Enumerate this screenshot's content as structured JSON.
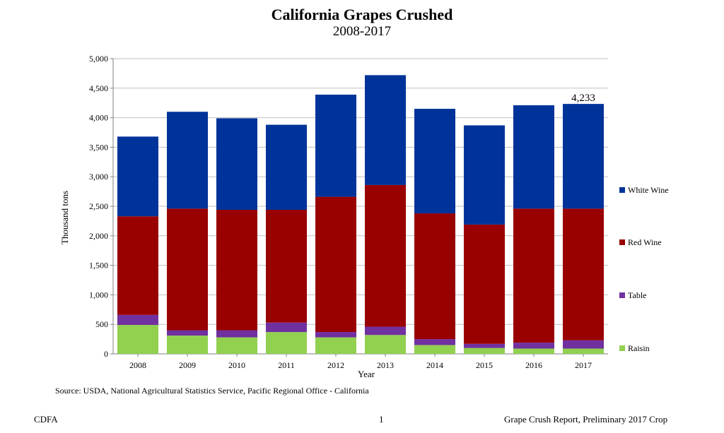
{
  "chart_data": {
    "type": "bar",
    "stacked": true,
    "title": "California Grapes Crushed",
    "subtitle": "2008-2017",
    "xlabel": "Year",
    "ylabel": "Thousand tons",
    "ylim": [
      0,
      5000
    ],
    "ytick_step": 500,
    "grid": true,
    "legend_position": "right",
    "categories": [
      "2008",
      "2009",
      "2010",
      "2011",
      "2012",
      "2013",
      "2014",
      "2015",
      "2016",
      "2017"
    ],
    "series": [
      {
        "name": "Raisin",
        "color": "#92d050",
        "values": [
          490,
          310,
          280,
          370,
          280,
          320,
          150,
          100,
          90,
          90
        ]
      },
      {
        "name": "Table",
        "color": "#7030a0",
        "values": [
          170,
          90,
          120,
          160,
          90,
          140,
          100,
          70,
          100,
          140
        ]
      },
      {
        "name": "Red Wine",
        "color": "#990000",
        "values": [
          1670,
          2060,
          2040,
          1910,
          2290,
          2400,
          2130,
          2020,
          2270,
          2230
        ]
      },
      {
        "name": "White Wine",
        "color": "#003399",
        "values": [
          1350,
          1640,
          1550,
          1440,
          1730,
          1860,
          1770,
          1680,
          1750,
          1773
        ]
      }
    ],
    "annotations": [
      {
        "category": "2017",
        "text": "4,233"
      }
    ]
  },
  "source": "Source: USDA, National Agricultural Statistics Service, Pacific Regional Office - California",
  "footer": {
    "left": "CDFA",
    "center": "1",
    "right": "Grape Crush Report, Preliminary 2017 Crop"
  }
}
